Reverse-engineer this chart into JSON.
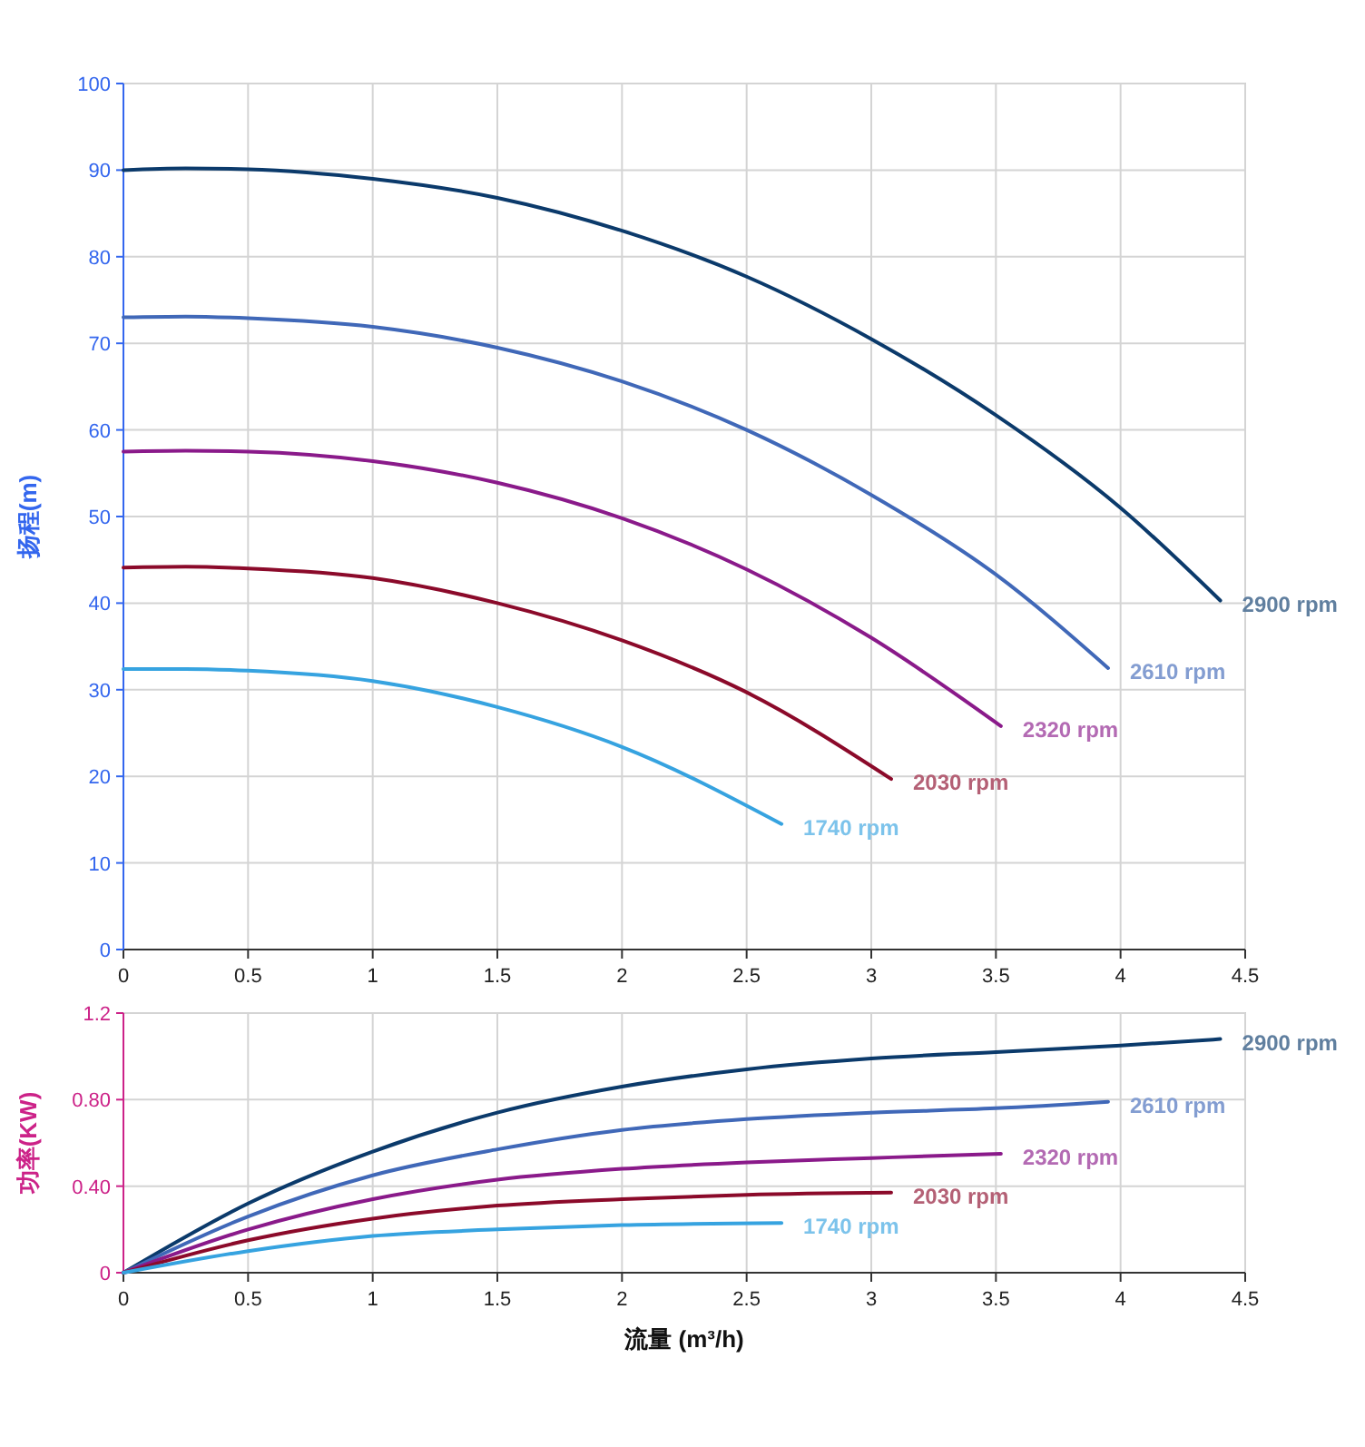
{
  "chart_data": [
    {
      "type": "line",
      "ylabel": "扬程(m)",
      "xlim": [
        0,
        4.5
      ],
      "xticks": [
        0,
        0.5,
        1,
        1.5,
        2,
        2.5,
        3,
        3.5,
        4,
        4.5
      ],
      "ylim": [
        0,
        100
      ],
      "yticks": [
        0,
        10,
        20,
        30,
        40,
        50,
        60,
        70,
        80,
        90,
        100
      ],
      "grid": true,
      "legend": false,
      "marker": "none",
      "series": [
        {
          "name": "2900 rpm",
          "color": "#0b3a6b",
          "x": [
            0,
            0.25,
            0.5,
            1,
            1.5,
            2,
            2.5,
            3,
            3.5,
            4,
            4.4
          ],
          "values": [
            90,
            90.2,
            90.1,
            89,
            86.8,
            83,
            77.7,
            70.5,
            61.7,
            51,
            40.3
          ]
        },
        {
          "name": "2610 rpm",
          "color": "#4068b8",
          "x": [
            0,
            0.25,
            0.5,
            1,
            1.5,
            2,
            2.5,
            3,
            3.5,
            3.95
          ],
          "values": [
            73,
            73.1,
            72.9,
            71.9,
            69.5,
            65.6,
            60,
            52.5,
            43.3,
            32.5
          ]
        },
        {
          "name": "2320 rpm",
          "color": "#8a1a8a",
          "x": [
            0,
            0.25,
            0.5,
            1,
            1.5,
            2,
            2.5,
            3,
            3.52
          ],
          "values": [
            57.5,
            57.6,
            57.5,
            56.4,
            53.9,
            49.8,
            43.9,
            36,
            25.8
          ]
        },
        {
          "name": "2030 rpm",
          "color": "#8b0a2a",
          "x": [
            0,
            0.25,
            0.5,
            1,
            1.5,
            2,
            2.5,
            3.08
          ],
          "values": [
            44.1,
            44.2,
            44,
            42.9,
            40,
            35.7,
            29.7,
            19.7
          ]
        },
        {
          "name": "1740 rpm",
          "color": "#36a3e0",
          "x": [
            0,
            0.25,
            0.5,
            1,
            1.5,
            2,
            2.64
          ],
          "values": [
            32.4,
            32.4,
            32.2,
            31,
            28,
            23.4,
            14.5
          ]
        }
      ]
    },
    {
      "type": "line",
      "ylabel": "功率(KW)",
      "xlabel": "流量 (m³/h)",
      "xlim": [
        0,
        4.5
      ],
      "xticks": [
        0,
        0.5,
        1,
        1.5,
        2,
        2.5,
        3,
        3.5,
        4,
        4.5
      ],
      "ylim": [
        0,
        1.2
      ],
      "yticks": [
        0,
        {
          "value": 0.4,
          "label": "0.40"
        },
        {
          "value": 0.8,
          "label": "0.80"
        },
        1.2
      ],
      "grid": true,
      "legend": false,
      "marker": "none",
      "series": [
        {
          "name": "2900 rpm",
          "color": "#0b3a6b",
          "x": [
            0,
            0.5,
            1,
            1.5,
            2,
            2.5,
            3,
            3.5,
            4,
            4.4
          ],
          "values": [
            0,
            0.32,
            0.56,
            0.74,
            0.86,
            0.94,
            0.99,
            1.02,
            1.05,
            1.08
          ]
        },
        {
          "name": "2610 rpm",
          "color": "#4068b8",
          "x": [
            0,
            0.5,
            1,
            1.5,
            2,
            2.5,
            3,
            3.5,
            3.95
          ],
          "values": [
            0,
            0.26,
            0.45,
            0.57,
            0.66,
            0.71,
            0.74,
            0.76,
            0.79
          ]
        },
        {
          "name": "2320 rpm",
          "color": "#8a1a8a",
          "x": [
            0,
            0.5,
            1,
            1.5,
            2,
            2.5,
            3,
            3.52
          ],
          "values": [
            0,
            0.2,
            0.34,
            0.43,
            0.48,
            0.51,
            0.53,
            0.55
          ]
        },
        {
          "name": "2030 rpm",
          "color": "#8b0a2a",
          "x": [
            0,
            0.5,
            1,
            1.5,
            2,
            2.5,
            3.08
          ],
          "values": [
            0,
            0.15,
            0.25,
            0.31,
            0.34,
            0.36,
            0.37
          ]
        },
        {
          "name": "1740 rpm",
          "color": "#36a3e0",
          "x": [
            0,
            0.5,
            1,
            1.5,
            2,
            2.64
          ],
          "values": [
            0,
            0.1,
            0.17,
            0.2,
            0.22,
            0.23
          ]
        }
      ]
    }
  ]
}
